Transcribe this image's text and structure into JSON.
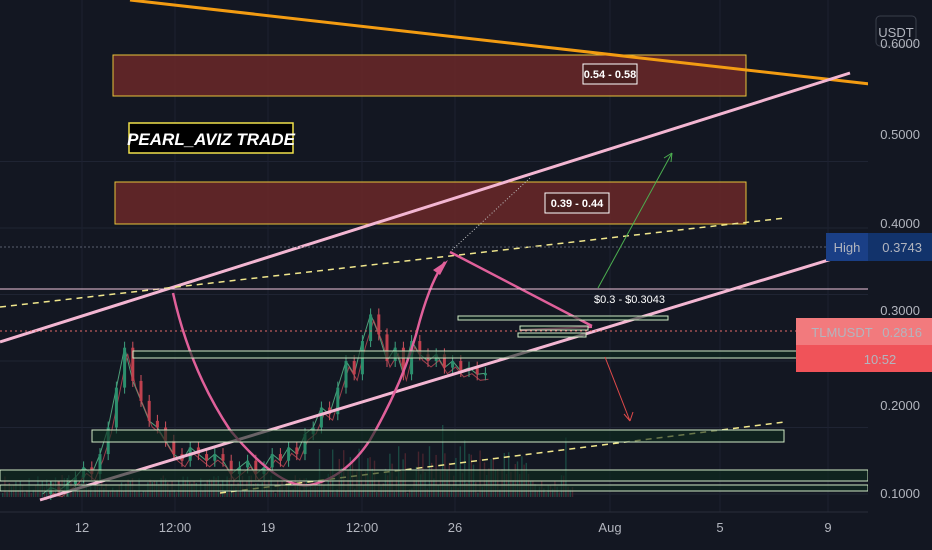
{
  "chart_data": {
    "type": "candlestick",
    "symbol": "TLMUSDT",
    "currency_label": "USDT",
    "last_price": "0.2816",
    "countdown": "10:52",
    "high_label": "High",
    "high_value": "0.3743",
    "watermark": "PEARL_AVIZ TRADE",
    "x_ticks": [
      "12",
      "12:00",
      "19",
      "12:00",
      "26",
      "Aug",
      "5",
      "9"
    ],
    "y_ticks": [
      "0.5000",
      "0.4000",
      "0.3000",
      "0.2000",
      "0.1000"
    ],
    "y_partial_top": "0.6000",
    "zones": [
      {
        "label": "0.54 - 0.58",
        "low": 0.54,
        "high": 0.58
      },
      {
        "label": "0.39 - 0.44",
        "low": 0.39,
        "high": 0.44
      }
    ],
    "support_labels": [
      {
        "label": "$0.3 - $0.3043",
        "low": 0.3,
        "high": 0.3043
      }
    ],
    "price_series": [
      [
        -28,
        0.1
      ],
      [
        -24,
        0.11
      ],
      [
        -20,
        0.105
      ],
      [
        -16,
        0.115
      ],
      [
        -12,
        0.125
      ],
      [
        -8,
        0.14
      ],
      [
        -4,
        0.13
      ],
      [
        0,
        0.16
      ],
      [
        4,
        0.2
      ],
      [
        8,
        0.26
      ],
      [
        12,
        0.32
      ],
      [
        16,
        0.27
      ],
      [
        20,
        0.24
      ],
      [
        24,
        0.21
      ],
      [
        28,
        0.2
      ],
      [
        32,
        0.18
      ],
      [
        36,
        0.16
      ],
      [
        40,
        0.15
      ],
      [
        44,
        0.17
      ],
      [
        48,
        0.16
      ],
      [
        52,
        0.15
      ],
      [
        56,
        0.16
      ],
      [
        60,
        0.15
      ],
      [
        64,
        0.13
      ],
      [
        68,
        0.14
      ],
      [
        72,
        0.15
      ],
      [
        76,
        0.13
      ],
      [
        80,
        0.14
      ],
      [
        84,
        0.16
      ],
      [
        88,
        0.15
      ],
      [
        92,
        0.17
      ],
      [
        96,
        0.16
      ],
      [
        100,
        0.19
      ],
      [
        104,
        0.2
      ],
      [
        108,
        0.23
      ],
      [
        112,
        0.22
      ],
      [
        116,
        0.26
      ],
      [
        120,
        0.3
      ],
      [
        124,
        0.28
      ],
      [
        128,
        0.33
      ],
      [
        132,
        0.37
      ],
      [
        136,
        0.34
      ],
      [
        140,
        0.3
      ],
      [
        144,
        0.32
      ],
      [
        148,
        0.28
      ],
      [
        152,
        0.33
      ],
      [
        156,
        0.31
      ],
      [
        160,
        0.3
      ],
      [
        164,
        0.31
      ],
      [
        168,
        0.29
      ],
      [
        172,
        0.3
      ],
      [
        176,
        0.285
      ],
      [
        180,
        0.29
      ],
      [
        184,
        0.28
      ],
      [
        188,
        0.2816
      ]
    ]
  }
}
